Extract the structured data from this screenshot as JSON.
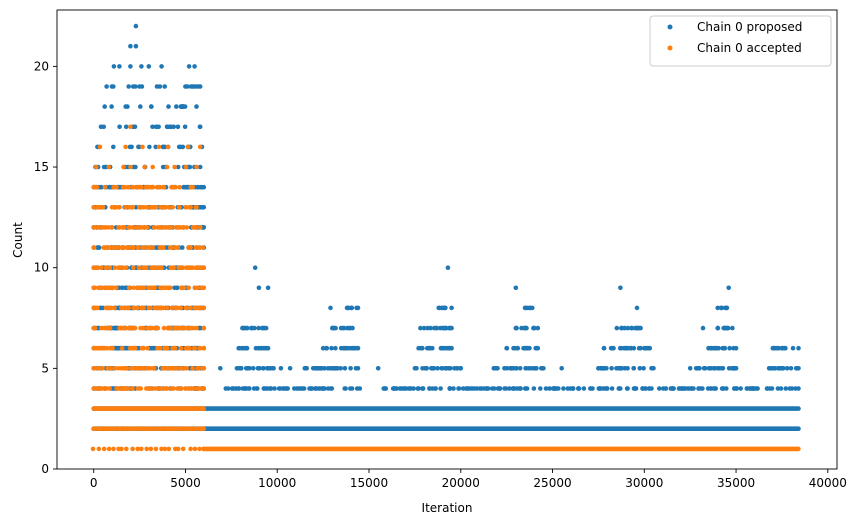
{
  "chart_data": {
    "type": "scatter",
    "title": "",
    "xlabel": "Iteration",
    "ylabel": "Count",
    "xlim": [
      -2000,
      40500
    ],
    "ylim": [
      0,
      22.8
    ],
    "x_ticks": [
      0,
      5000,
      10000,
      15000,
      20000,
      25000,
      30000,
      35000,
      40000
    ],
    "y_ticks": [
      0,
      5,
      10,
      15,
      20
    ],
    "grid": false,
    "legend_position": "top-right",
    "colors": {
      "proposed": "#1f77b4",
      "accepted": "#ff7f0e"
    },
    "series": [
      {
        "name": "Chain 0 proposed",
        "color": "#1f77b4",
        "bands": [
          {
            "y": 2,
            "x_start": 0,
            "x_end": 38400
          },
          {
            "y": 3,
            "x_start": 0,
            "x_end": 38400
          }
        ],
        "ranges": [
          {
            "y": 4,
            "segments": [
              [
                0,
                6000
              ],
              [
                7200,
                14500
              ],
              [
                15800,
                38400
              ]
            ]
          },
          {
            "y": 5,
            "segments": [
              [
                0,
                6000
              ],
              [
                7800,
                9800
              ],
              [
                11500,
                14400
              ],
              [
                17500,
                20000
              ],
              [
                21800,
                24500
              ],
              [
                27500,
                30500
              ],
              [
                32500,
                35000
              ],
              [
                36800,
                38400
              ]
            ]
          },
          {
            "y": 6,
            "segments": [
              [
                0,
                6000
              ],
              [
                7900,
                9500
              ],
              [
                12500,
                14400
              ],
              [
                17700,
                19500
              ],
              [
                22500,
                24200
              ],
              [
                27800,
                30300
              ],
              [
                33500,
                35000
              ],
              [
                37000,
                38400
              ]
            ]
          },
          {
            "y": 7,
            "segments": [
              [
                0,
                6000
              ],
              [
                8100,
                9400
              ],
              [
                13000,
                14100
              ],
              [
                18000,
                19500
              ],
              [
                23000,
                24200
              ],
              [
                28500,
                29800
              ],
              [
                34000,
                34800
              ]
            ]
          },
          {
            "y": 8,
            "segments": [
              [
                0,
                6000
              ],
              [
                13800,
                14400
              ],
              [
                18800,
                19500
              ],
              [
                23500,
                23800
              ],
              [
                34000,
                34500
              ]
            ]
          },
          {
            "y": 9,
            "segments": [
              [
                0,
                5800
              ]
            ]
          },
          {
            "y": 10,
            "segments": [
              [
                0,
                6000
              ]
            ]
          },
          {
            "y": 11,
            "segments": [
              [
                0,
                6000
              ]
            ]
          },
          {
            "y": 12,
            "segments": [
              [
                0,
                6000
              ]
            ]
          },
          {
            "y": 13,
            "segments": [
              [
                0,
                6000
              ]
            ]
          },
          {
            "y": 14,
            "segments": [
              [
                0,
                6000
              ]
            ]
          },
          {
            "y": 15,
            "segments": [
              [
                100,
                5800
              ]
            ]
          },
          {
            "y": 16,
            "segments": [
              [
                200,
                5900
              ]
            ]
          },
          {
            "y": 17,
            "segments": [
              [
                400,
                5800
              ]
            ]
          },
          {
            "y": 18,
            "segments": [
              [
                600,
                5600
              ]
            ]
          },
          {
            "y": 19,
            "segments": [
              [
                700,
                5700
              ]
            ]
          }
        ],
        "points": [
          {
            "x": 8800,
            "y": 10
          },
          {
            "x": 19300,
            "y": 10
          },
          {
            "x": 9000,
            "y": 9
          },
          {
            "x": 9500,
            "y": 9
          },
          {
            "x": 23000,
            "y": 9
          },
          {
            "x": 28700,
            "y": 9
          },
          {
            "x": 34600,
            "y": 9
          },
          {
            "x": 12900,
            "y": 8
          },
          {
            "x": 23900,
            "y": 8
          },
          {
            "x": 29600,
            "y": 8
          },
          {
            "x": 17800,
            "y": 7
          },
          {
            "x": 33200,
            "y": 7
          },
          {
            "x": 10200,
            "y": 5
          },
          {
            "x": 15500,
            "y": 5
          },
          {
            "x": 25500,
            "y": 5
          },
          {
            "x": 6900,
            "y": 5
          },
          {
            "x": 10700,
            "y": 5
          },
          {
            "x": 1100,
            "y": 20
          },
          {
            "x": 1400,
            "y": 20
          },
          {
            "x": 2000,
            "y": 20
          },
          {
            "x": 2600,
            "y": 20
          },
          {
            "x": 3000,
            "y": 20
          },
          {
            "x": 3700,
            "y": 20
          },
          {
            "x": 5200,
            "y": 20
          },
          {
            "x": 5500,
            "y": 20
          },
          {
            "x": 2000,
            "y": 21
          },
          {
            "x": 2300,
            "y": 21
          },
          {
            "x": 5800,
            "y": 19
          },
          {
            "x": 2300,
            "y": 22
          }
        ]
      },
      {
        "name": "Chain 0 accepted",
        "color": "#ff7f0e",
        "bands": [
          {
            "y": 1,
            "x_start": 6000,
            "x_end": 38400
          }
        ],
        "ranges": [
          {
            "y": 4,
            "segments": [
              [
                0,
                6000
              ]
            ]
          },
          {
            "y": 5,
            "segments": [
              [
                0,
                6000
              ]
            ]
          },
          {
            "y": 6,
            "segments": [
              [
                0,
                6000
              ]
            ]
          },
          {
            "y": 7,
            "segments": [
              [
                0,
                6000
              ]
            ]
          },
          {
            "y": 8,
            "segments": [
              [
                0,
                6000
              ]
            ]
          },
          {
            "y": 9,
            "segments": [
              [
                0,
                6000
              ]
            ]
          },
          {
            "y": 10,
            "segments": [
              [
                0,
                6000
              ]
            ]
          },
          {
            "y": 11,
            "segments": [
              [
                0,
                5950
              ]
            ]
          },
          {
            "y": 12,
            "segments": [
              [
                0,
                5800
              ]
            ]
          },
          {
            "y": 13,
            "segments": [
              [
                0,
                5600
              ]
            ]
          },
          {
            "y": 14,
            "segments": [
              [
                0,
                5400
              ]
            ]
          }
        ],
        "sparse_rows": [
          {
            "y": 1,
            "x_start": 0,
            "x_end": 6000,
            "step": 260
          },
          {
            "y": 2,
            "x_start": 0,
            "x_end": 6000,
            "step": 120
          },
          {
            "y": 3,
            "x_start": 0,
            "x_end": 6000,
            "step": 60
          },
          {
            "y": 15,
            "x_start": 300,
            "x_end": 5300,
            "step": 600
          },
          {
            "y": 16,
            "x_start": 600,
            "x_end": 5800,
            "step": 900
          }
        ],
        "points": [
          {
            "x": 2000,
            "y": 17
          },
          {
            "x": 5800,
            "y": 16
          },
          {
            "x": 5600,
            "y": 15
          }
        ]
      }
    ]
  }
}
